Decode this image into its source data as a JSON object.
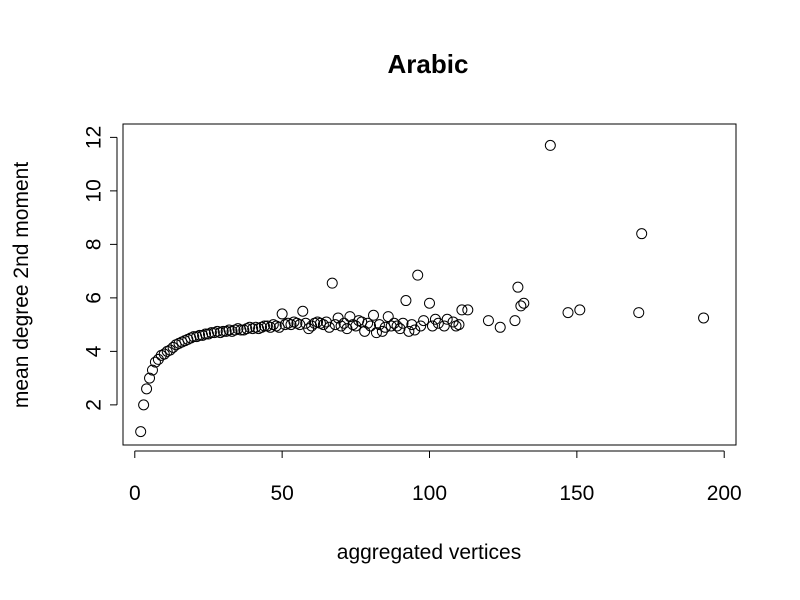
{
  "chart_data": {
    "type": "scatter",
    "title": "Arabic",
    "xlabel": "aggregated vertices",
    "ylabel": "mean degree 2nd moment",
    "xlim": [
      -4,
      204
    ],
    "ylim": [
      0.5,
      12.5
    ],
    "x_ticks": [
      0,
      50,
      100,
      150,
      200
    ],
    "y_ticks": [
      2,
      4,
      6,
      8,
      10,
      12
    ],
    "grid": false,
    "legend": "none",
    "marker": "open-circle",
    "points": [
      [
        2,
        1.0
      ],
      [
        3,
        2.0
      ],
      [
        4,
        2.6
      ],
      [
        5,
        3.0
      ],
      [
        6,
        3.3
      ],
      [
        7,
        3.6
      ],
      [
        8,
        3.7
      ],
      [
        9,
        3.85
      ],
      [
        10,
        3.9
      ],
      [
        11,
        4.0
      ],
      [
        12,
        4.05
      ],
      [
        13,
        4.15
      ],
      [
        14,
        4.25
      ],
      [
        15,
        4.3
      ],
      [
        16,
        4.35
      ],
      [
        17,
        4.4
      ],
      [
        18,
        4.45
      ],
      [
        19,
        4.5
      ],
      [
        20,
        4.55
      ],
      [
        21,
        4.55
      ],
      [
        22,
        4.6
      ],
      [
        23,
        4.6
      ],
      [
        24,
        4.65
      ],
      [
        25,
        4.65
      ],
      [
        26,
        4.7
      ],
      [
        27,
        4.7
      ],
      [
        28,
        4.75
      ],
      [
        29,
        4.7
      ],
      [
        30,
        4.75
      ],
      [
        31,
        4.75
      ],
      [
        32,
        4.8
      ],
      [
        33,
        4.75
      ],
      [
        34,
        4.8
      ],
      [
        35,
        4.85
      ],
      [
        36,
        4.8
      ],
      [
        37,
        4.8
      ],
      [
        38,
        4.85
      ],
      [
        39,
        4.9
      ],
      [
        40,
        4.85
      ],
      [
        41,
        4.9
      ],
      [
        42,
        4.85
      ],
      [
        43,
        4.9
      ],
      [
        44,
        4.95
      ],
      [
        45,
        4.95
      ],
      [
        46,
        4.9
      ],
      [
        47,
        5.0
      ],
      [
        48,
        4.95
      ],
      [
        49,
        4.9
      ],
      [
        50,
        5.4
      ],
      [
        51,
        5.0
      ],
      [
        52,
        5.05
      ],
      [
        53,
        5.0
      ],
      [
        54,
        5.1
      ],
      [
        55,
        5.05
      ],
      [
        56,
        5.0
      ],
      [
        57,
        5.5
      ],
      [
        58,
        5.05
      ],
      [
        59,
        4.85
      ],
      [
        60,
        4.95
      ],
      [
        61,
        5.05
      ],
      [
        62,
        5.1
      ],
      [
        63,
        5.05
      ],
      [
        64,
        5.0
      ],
      [
        65,
        5.1
      ],
      [
        66,
        4.9
      ],
      [
        67,
        6.55
      ],
      [
        68,
        5.0
      ],
      [
        69,
        5.25
      ],
      [
        70,
        4.95
      ],
      [
        71,
        5.05
      ],
      [
        72,
        4.85
      ],
      [
        73,
        5.3
      ],
      [
        74,
        5.0
      ],
      [
        75,
        4.95
      ],
      [
        76,
        5.15
      ],
      [
        77,
        5.1
      ],
      [
        78,
        4.75
      ],
      [
        79,
        5.05
      ],
      [
        80,
        4.95
      ],
      [
        81,
        5.35
      ],
      [
        82,
        4.7
      ],
      [
        83,
        5.0
      ],
      [
        84,
        4.75
      ],
      [
        85,
        4.9
      ],
      [
        86,
        5.3
      ],
      [
        87,
        4.95
      ],
      [
        88,
        5.05
      ],
      [
        89,
        4.95
      ],
      [
        90,
        4.85
      ],
      [
        91,
        5.05
      ],
      [
        92,
        5.9
      ],
      [
        93,
        4.75
      ],
      [
        94,
        5.0
      ],
      [
        95,
        4.8
      ],
      [
        96,
        6.85
      ],
      [
        97,
        4.95
      ],
      [
        98,
        5.15
      ],
      [
        100,
        5.8
      ],
      [
        101,
        4.95
      ],
      [
        102,
        5.2
      ],
      [
        103,
        5.05
      ],
      [
        105,
        4.95
      ],
      [
        106,
        5.2
      ],
      [
        108,
        5.1
      ],
      [
        109,
        4.95
      ],
      [
        110,
        5.0
      ],
      [
        111,
        5.55
      ],
      [
        113,
        5.55
      ],
      [
        120,
        5.15
      ],
      [
        124,
        4.9
      ],
      [
        129,
        5.15
      ],
      [
        130,
        6.4
      ],
      [
        131,
        5.7
      ],
      [
        132,
        5.8
      ],
      [
        141,
        11.7
      ],
      [
        147,
        5.45
      ],
      [
        151,
        5.55
      ],
      [
        171,
        5.45
      ],
      [
        172,
        8.4
      ],
      [
        193,
        5.25
      ]
    ]
  }
}
